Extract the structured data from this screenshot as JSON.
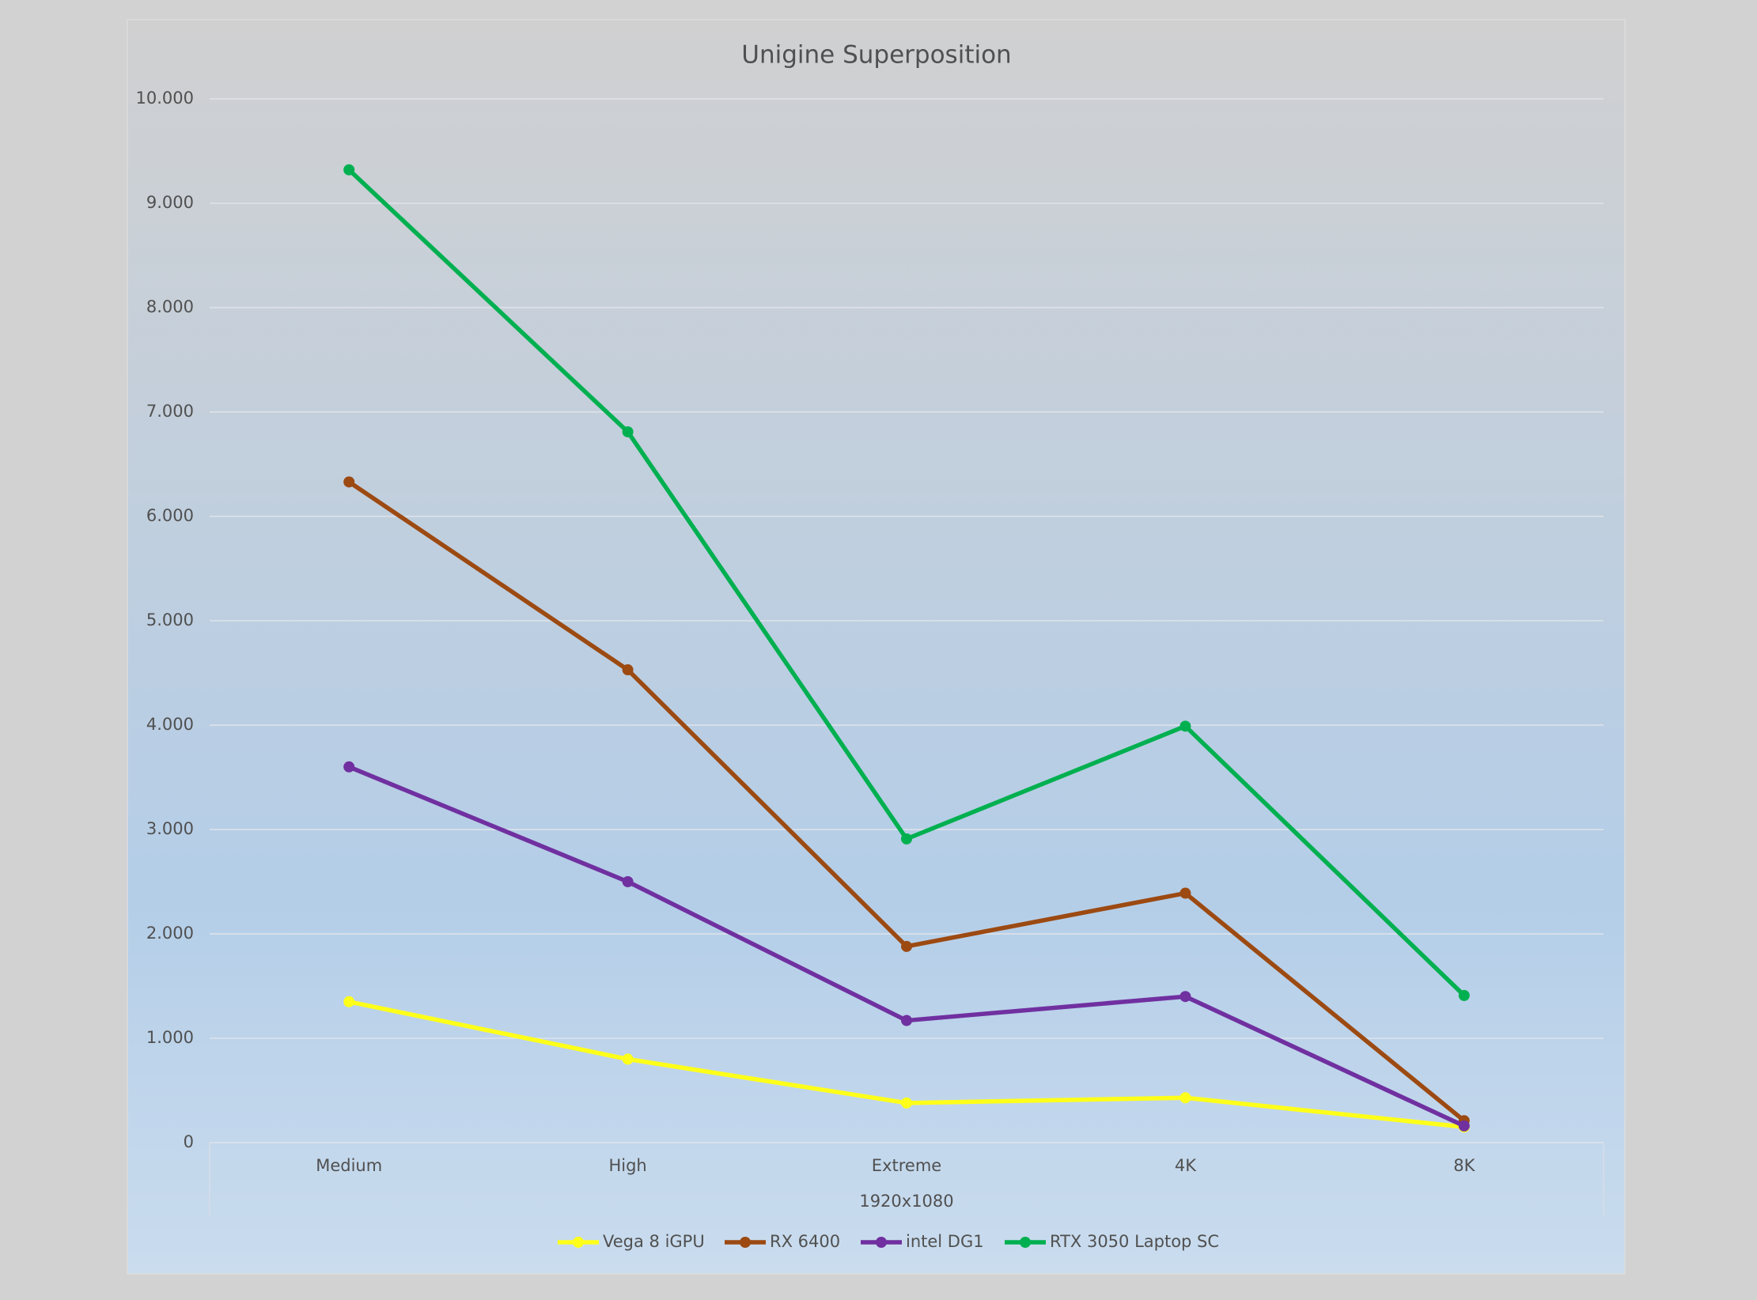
{
  "chart_data": {
    "type": "line",
    "title": "Unigine Superposition",
    "categories": [
      "Medium",
      "High",
      "Extreme",
      "4K",
      "8K"
    ],
    "x_group_label": "1920x1080",
    "series": [
      {
        "name": "Vega 8 iGPU",
        "color": "#ffff1a",
        "values": [
          1350,
          800,
          380,
          430,
          150
        ]
      },
      {
        "name": "RX 6400",
        "color": "#9c4a12",
        "values": [
          6330,
          4530,
          1880,
          2390,
          210
        ]
      },
      {
        "name": "intel DG1",
        "color": "#7030a0",
        "values": [
          3600,
          2500,
          1170,
          1400,
          160
        ]
      },
      {
        "name": "RTX 3050 Laptop SC",
        "color": "#00b050",
        "values": [
          9320,
          6810,
          2910,
          3990,
          1410
        ]
      }
    ],
    "ylim": [
      0,
      10000
    ],
    "yticks": [
      0,
      {
        "value": 1000,
        "label": "1.000"
      },
      {
        "value": 2000,
        "label": "2.000"
      },
      {
        "value": 3000,
        "label": "3.000"
      },
      {
        "value": 4000,
        "label": "4.000"
      },
      {
        "value": 5000,
        "label": "5.000"
      },
      {
        "value": 6000,
        "label": "6.000"
      },
      {
        "value": 7000,
        "label": "7.000"
      },
      {
        "value": 8000,
        "label": "8.000"
      },
      {
        "value": 9000,
        "label": "9.000"
      },
      {
        "value": 10000,
        "label": "10.000"
      }
    ],
    "grid": true,
    "legend": "bottom"
  }
}
